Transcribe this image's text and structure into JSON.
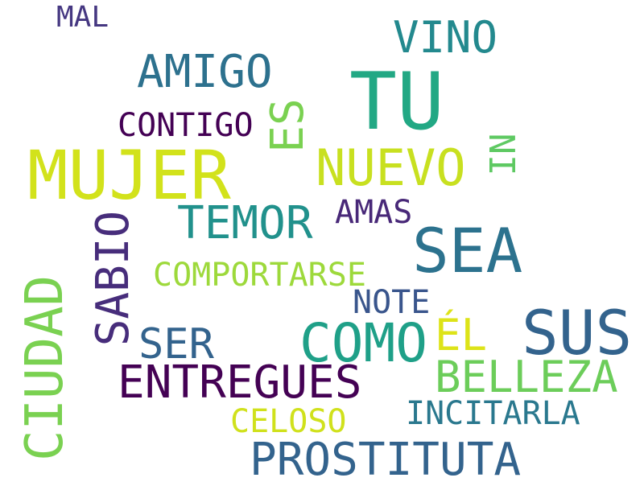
{
  "words": [
    {
      "key": "mal",
      "text": "MAL",
      "color": "#453781"
    },
    {
      "key": "vino",
      "text": "VINO",
      "color": "#23898e"
    },
    {
      "key": "amigo",
      "text": "AMIGO",
      "color": "#2d718e"
    },
    {
      "key": "tu",
      "text": "TU",
      "color": "#22a884"
    },
    {
      "key": "contigo",
      "text": "CONTIGO",
      "color": "#440154"
    },
    {
      "key": "es",
      "text": "ES",
      "color": "#7ad151"
    },
    {
      "key": "ni",
      "text": "NI",
      "color": "#5ec962"
    },
    {
      "key": "mujer",
      "text": "MUJER",
      "color": "#d2e21b"
    },
    {
      "key": "nuevo",
      "text": "NUEVO",
      "color": "#c8e020"
    },
    {
      "key": "temor",
      "text": "TEMOR",
      "color": "#21918c"
    },
    {
      "key": "amas",
      "text": "AMAS",
      "color": "#482878"
    },
    {
      "key": "sabio",
      "text": "SABIO",
      "color": "#472d7b"
    },
    {
      "key": "sea",
      "text": "SEA",
      "color": "#2c728e"
    },
    {
      "key": "comportarse",
      "text": "COMPORTARSE",
      "color": "#9dd93b"
    },
    {
      "key": "ciudad",
      "text": "CIUDAD",
      "color": "#7ad151"
    },
    {
      "key": "note",
      "text": "NOTE",
      "color": "#39558c"
    },
    {
      "key": "sus",
      "text": "SUS",
      "color": "#33638d"
    },
    {
      "key": "ser",
      "text": "SER",
      "color": "#33638d"
    },
    {
      "key": "como",
      "text": "COMO",
      "color": "#1fa088"
    },
    {
      "key": "el",
      "text": "ÉL",
      "color": "#dde318"
    },
    {
      "key": "entregues",
      "text": "ENTREGUES",
      "color": "#440154"
    },
    {
      "key": "belleza",
      "text": "BELLEZA",
      "color": "#6ccd5a"
    },
    {
      "key": "incitarla",
      "text": "INCITARLA",
      "color": "#2a788e"
    },
    {
      "key": "celoso",
      "text": "CELOSO",
      "color": "#d0e11c"
    },
    {
      "key": "prostituta",
      "text": "PROSTITUTA",
      "color": "#33638d"
    }
  ]
}
